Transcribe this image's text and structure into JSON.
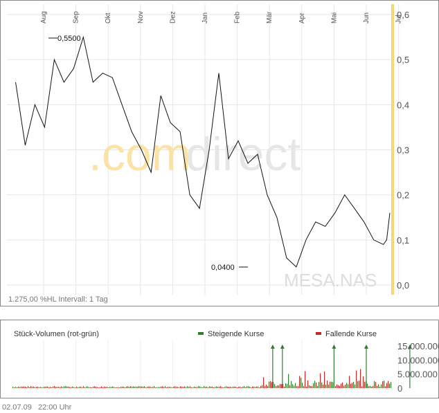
{
  "chart_data": [
    {
      "type": "line",
      "months": [
        "Aug",
        "Sep",
        "Okt",
        "Nov",
        "Dez",
        "Jan",
        "Feb",
        "Mär",
        "Apr",
        "Mai",
        "Jun",
        "Jul"
      ],
      "yticks": [
        "0,0",
        "0,1",
        "0,2",
        "0,3",
        "0,4",
        "0,5",
        "0,6"
      ],
      "ylim": [
        0,
        0.6
      ],
      "annotations": {
        "max": "0,5500",
        "min": "0,0400"
      },
      "watermark": {
        "brand_a": ".com",
        "brand_b": "direct",
        "symbol": "MESA.NAS"
      },
      "interval_text": "1.275,00 %HL Intervall: 1 Tag",
      "highlight_color": "#f7d774",
      "series": [
        {
          "x": [
            0.0,
            0.3,
            0.6,
            0.9,
            1.2,
            1.5,
            1.8,
            2.1,
            2.4,
            2.7,
            3.0,
            3.3,
            3.6,
            3.9,
            4.2,
            4.5,
            4.8,
            5.1,
            5.4,
            5.7,
            6.0,
            6.3,
            6.6,
            6.9,
            7.2,
            7.5,
            7.8,
            8.1,
            8.4,
            8.7,
            9.0,
            9.3,
            9.6,
            9.9,
            10.2,
            10.5,
            10.8,
            11.1,
            11.4,
            11.5,
            11.6
          ],
          "y": [
            0.45,
            0.31,
            0.4,
            0.35,
            0.5,
            0.45,
            0.48,
            0.55,
            0.45,
            0.47,
            0.46,
            0.4,
            0.34,
            0.3,
            0.25,
            0.42,
            0.36,
            0.34,
            0.2,
            0.17,
            0.3,
            0.47,
            0.28,
            0.32,
            0.27,
            0.29,
            0.2,
            0.15,
            0.06,
            0.04,
            0.1,
            0.14,
            0.13,
            0.16,
            0.2,
            0.17,
            0.14,
            0.1,
            0.09,
            0.1,
            0.16
          ]
        }
      ]
    },
    {
      "type": "bar",
      "title": "Stück-Volumen (rot-grün)",
      "legend": {
        "up": "Steigende Kurse",
        "down": "Fallende Kurse"
      },
      "yticks": [
        "0",
        "5.000.000",
        "10.000.000",
        "15.000.000"
      ],
      "ylim": [
        0,
        15000000
      ],
      "colors": {
        "up": "#2e7d32",
        "down": "#c62828"
      },
      "spikes_at": [
        7.1,
        7.4,
        9.0,
        10.0,
        11.35
      ]
    }
  ],
  "footer": {
    "date": "02.07.09",
    "time": "22:00 Uhr"
  }
}
